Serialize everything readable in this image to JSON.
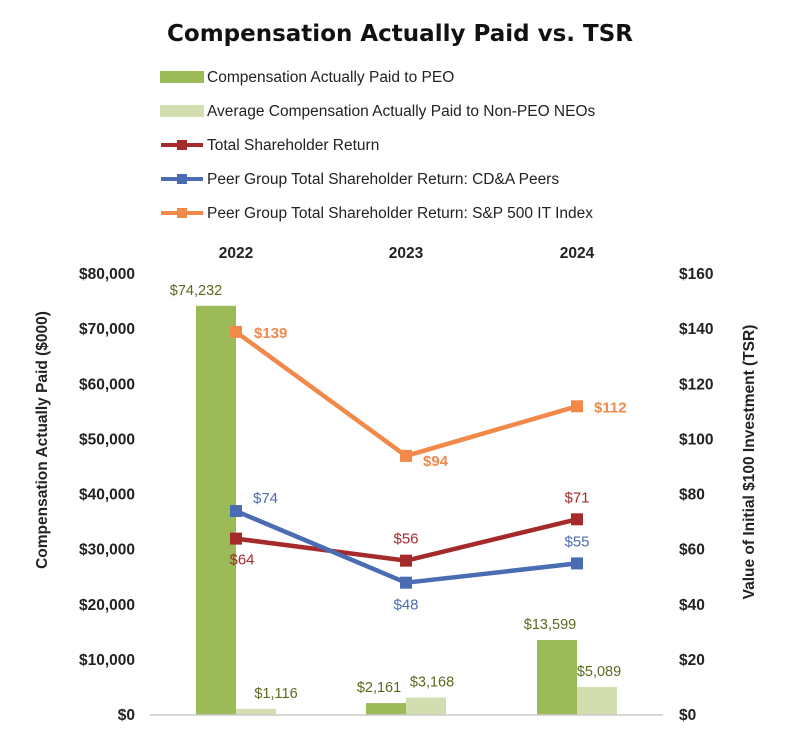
{
  "chart_data": {
    "type": "bar+line",
    "title": "Compensation Actually Paid vs. TSR",
    "categories": [
      "2022",
      "2023",
      "2024"
    ],
    "y_left": {
      "label": "Compensation Actually Paid ($000)",
      "min": 0,
      "max": 80000,
      "step": 10000,
      "ticks": [
        "$0",
        "$10,000",
        "$20,000",
        "$30,000",
        "$40,000",
        "$50,000",
        "$60,000",
        "$70,000",
        "$80,000"
      ]
    },
    "y_right": {
      "label": "Value of Initial $100 Investment (TSR)",
      "min": 0,
      "max": 160,
      "step": 20,
      "ticks": [
        "$0",
        "$20",
        "$40",
        "$60",
        "$80",
        "$100",
        "$120",
        "$140",
        "$160"
      ]
    },
    "bar_series": [
      {
        "name": "Compensation Actually Paid to PEO",
        "color": "#9bbb59",
        "values": [
          74232,
          2161,
          13599
        ],
        "labels": [
          "$74,232",
          "$2,161",
          "$13,599"
        ]
      },
      {
        "name": "Average Compensation Actually Paid to Non-PEO NEOs",
        "color": "#d2deaf",
        "values": [
          1116,
          3168,
          5089
        ],
        "labels": [
          "$1,116",
          "$3,168",
          "$5,089"
        ]
      }
    ],
    "line_series": [
      {
        "name": "Total Shareholder Return",
        "color": "#a52a2a",
        "values": [
          64,
          56,
          71
        ],
        "labels": [
          "$64",
          "$56",
          "$71"
        ]
      },
      {
        "name": "Peer Group Total Shareholder Return: CD&A Peers",
        "color": "#4a6cb3",
        "values": [
          74,
          48,
          55
        ],
        "labels": [
          "$74",
          "$48",
          "$55"
        ]
      },
      {
        "name": "Peer Group Total Shareholder Return: S&P 500 IT Index",
        "color": "#f0894a",
        "values": [
          139,
          94,
          112
        ],
        "labels": [
          "$139",
          "$94",
          "$112"
        ]
      }
    ],
    "legend_position": "top"
  }
}
